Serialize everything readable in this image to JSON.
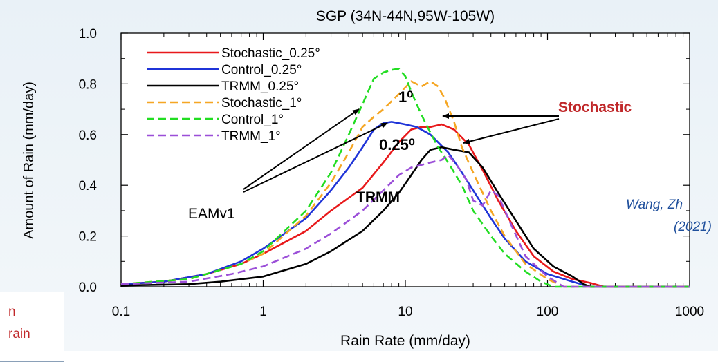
{
  "chart_data": {
    "type": "line",
    "title": "SGP (34N-44N,95W-105W)",
    "xlabel": "Rain Rate (mm/day)",
    "ylabel": "Amount of Rain (mm/day)",
    "xscale": "log",
    "xlim": [
      0.1,
      1000
    ],
    "ylim": [
      0.0,
      1.0
    ],
    "x_ticks": [
      "0.1",
      "1",
      "10",
      "100",
      "1000"
    ],
    "y_ticks": [
      "0.0",
      "0.2",
      "0.4",
      "0.6",
      "0.8",
      "1.0"
    ],
    "legend_position": "top-left",
    "series": [
      {
        "name": "Stochastic_0.25°",
        "color": "#e8191b",
        "dash": "solid",
        "points": [
          [
            0.1,
            0.01
          ],
          [
            0.2,
            0.02
          ],
          [
            0.4,
            0.05
          ],
          [
            0.7,
            0.09
          ],
          [
            1,
            0.13
          ],
          [
            2,
            0.22
          ],
          [
            3,
            0.3
          ],
          [
            5,
            0.39
          ],
          [
            7,
            0.49
          ],
          [
            9,
            0.57
          ],
          [
            11,
            0.62
          ],
          [
            13,
            0.63
          ],
          [
            15,
            0.63
          ],
          [
            18,
            0.64
          ],
          [
            22,
            0.62
          ],
          [
            28,
            0.56
          ],
          [
            35,
            0.46
          ],
          [
            45,
            0.34
          ],
          [
            60,
            0.22
          ],
          [
            80,
            0.12
          ],
          [
            110,
            0.06
          ],
          [
            150,
            0.03
          ],
          [
            200,
            0.015
          ],
          [
            250,
            0.0
          ],
          [
            1000,
            0.0
          ]
        ]
      },
      {
        "name": "Control_0.25°",
        "color": "#1f34d8",
        "dash": "solid",
        "points": [
          [
            0.1,
            0.01
          ],
          [
            0.2,
            0.02
          ],
          [
            0.4,
            0.05
          ],
          [
            0.7,
            0.1
          ],
          [
            1,
            0.15
          ],
          [
            2,
            0.27
          ],
          [
            3,
            0.38
          ],
          [
            4,
            0.47
          ],
          [
            5,
            0.55
          ],
          [
            6,
            0.62
          ],
          [
            7,
            0.645
          ],
          [
            8,
            0.65
          ],
          [
            9,
            0.645
          ],
          [
            10,
            0.64
          ],
          [
            12,
            0.63
          ],
          [
            15,
            0.6
          ],
          [
            20,
            0.53
          ],
          [
            25,
            0.45
          ],
          [
            30,
            0.38
          ],
          [
            40,
            0.27
          ],
          [
            50,
            0.19
          ],
          [
            70,
            0.1
          ],
          [
            100,
            0.05
          ],
          [
            150,
            0.02
          ],
          [
            200,
            0.0
          ],
          [
            1000,
            0.0
          ]
        ]
      },
      {
        "name": "TRMM_0.25°",
        "color": "#000000",
        "dash": "solid",
        "points": [
          [
            0.1,
            0.005
          ],
          [
            0.3,
            0.01
          ],
          [
            0.5,
            0.02
          ],
          [
            1,
            0.04
          ],
          [
            2,
            0.09
          ],
          [
            3,
            0.14
          ],
          [
            5,
            0.22
          ],
          [
            7,
            0.3
          ],
          [
            9,
            0.37
          ],
          [
            11,
            0.44
          ],
          [
            13,
            0.5
          ],
          [
            15,
            0.54
          ],
          [
            18,
            0.55
          ],
          [
            22,
            0.54
          ],
          [
            28,
            0.53
          ],
          [
            35,
            0.47
          ],
          [
            45,
            0.37
          ],
          [
            60,
            0.26
          ],
          [
            80,
            0.15
          ],
          [
            110,
            0.08
          ],
          [
            150,
            0.04
          ],
          [
            180,
            0.01
          ],
          [
            200,
            0.0
          ],
          [
            1000,
            0.0
          ]
        ]
      },
      {
        "name": "Stochastic_1°",
        "color": "#f5a623",
        "dash": "dashed",
        "points": [
          [
            0.1,
            0.01
          ],
          [
            0.3,
            0.03
          ],
          [
            0.7,
            0.09
          ],
          [
            1,
            0.13
          ],
          [
            2,
            0.28
          ],
          [
            3,
            0.41
          ],
          [
            4,
            0.53
          ],
          [
            5,
            0.63
          ],
          [
            6,
            0.67
          ],
          [
            7,
            0.7
          ],
          [
            9,
            0.76
          ],
          [
            11,
            0.81
          ],
          [
            13,
            0.79
          ],
          [
            15,
            0.81
          ],
          [
            17,
            0.79
          ],
          [
            19,
            0.74
          ],
          [
            22,
            0.65
          ],
          [
            25,
            0.55
          ],
          [
            30,
            0.45
          ],
          [
            40,
            0.3
          ],
          [
            50,
            0.2
          ],
          [
            70,
            0.09
          ],
          [
            100,
            0.03
          ],
          [
            130,
            0.0
          ],
          [
            1000,
            0.0
          ]
        ]
      },
      {
        "name": "Control_1°",
        "color": "#22dd22",
        "dash": "dashed",
        "points": [
          [
            0.1,
            0.01
          ],
          [
            0.3,
            0.03
          ],
          [
            0.7,
            0.09
          ],
          [
            1,
            0.14
          ],
          [
            2,
            0.3
          ],
          [
            3,
            0.45
          ],
          [
            4,
            0.6
          ],
          [
            5,
            0.72
          ],
          [
            6,
            0.82
          ],
          [
            7,
            0.845
          ],
          [
            8,
            0.855
          ],
          [
            9,
            0.86
          ],
          [
            10,
            0.83
          ],
          [
            11,
            0.77
          ],
          [
            12,
            0.72
          ],
          [
            14,
            0.64
          ],
          [
            17,
            0.55
          ],
          [
            20,
            0.49
          ],
          [
            25,
            0.4
          ],
          [
            30,
            0.3
          ],
          [
            40,
            0.2
          ],
          [
            50,
            0.13
          ],
          [
            70,
            0.06
          ],
          [
            90,
            0.02
          ],
          [
            110,
            0.0
          ],
          [
            1000,
            0.0
          ]
        ]
      },
      {
        "name": "TRMM_1°",
        "color": "#9b4fd8",
        "dash": "dashed",
        "points": [
          [
            0.1,
            0.01
          ],
          [
            0.3,
            0.02
          ],
          [
            0.6,
            0.05
          ],
          [
            1,
            0.08
          ],
          [
            2,
            0.15
          ],
          [
            3,
            0.21
          ],
          [
            5,
            0.3
          ],
          [
            7,
            0.38
          ],
          [
            9,
            0.44
          ],
          [
            11,
            0.47
          ],
          [
            13,
            0.48
          ],
          [
            15,
            0.49
          ],
          [
            18,
            0.5
          ],
          [
            20,
            0.52
          ],
          [
            23,
            0.48
          ],
          [
            27,
            0.42
          ],
          [
            30,
            0.34
          ],
          [
            35,
            0.32
          ],
          [
            40,
            0.38
          ],
          [
            45,
            0.36
          ],
          [
            55,
            0.25
          ],
          [
            70,
            0.12
          ],
          [
            100,
            0.04
          ],
          [
            130,
            0.0
          ],
          [
            1000,
            0.0
          ]
        ]
      }
    ],
    "annotations": [
      "1⁰",
      "0.25⁰",
      "TRMM",
      "Stochastic",
      "EAMv1"
    ]
  },
  "overlay": {
    "credit_line1": "Wang, Zh",
    "credit_line2": "(2021)",
    "side_box_line1": "n",
    "side_box_line2": "rain"
  }
}
